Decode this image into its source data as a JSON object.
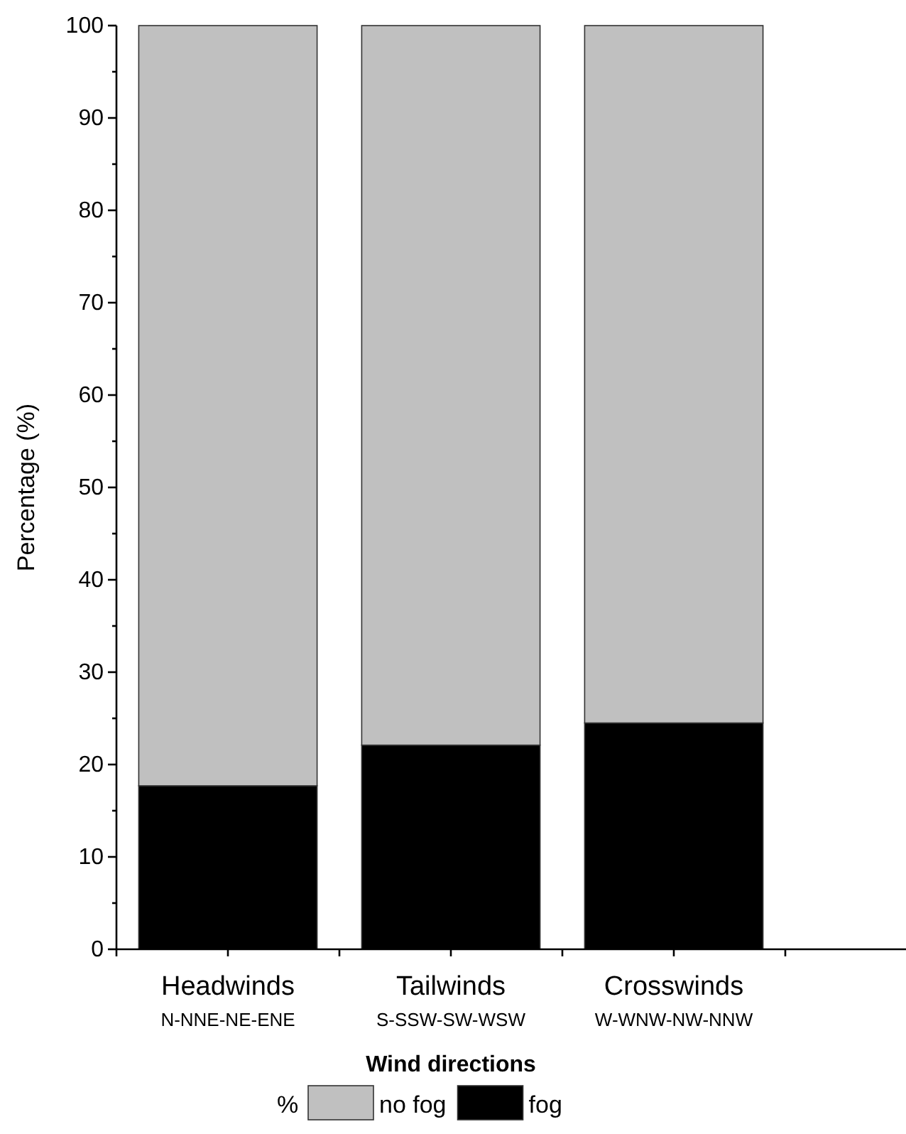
{
  "chart_data": {
    "type": "bar",
    "stacked": true,
    "xlabel": "Wind directions",
    "ylabel": "Percentage (%)",
    "legend_title": "%",
    "legend": "bottom",
    "categories": [
      "Headwinds\nN-NNE-NE-ENE",
      "Tailwinds\nS-SSW-SW-WSW",
      "Crosswinds\nW-WNW-NW-NNW"
    ],
    "series": [
      {
        "name": "fog",
        "color": "#000000",
        "values": [
          17.7,
          22.1,
          24.5
        ]
      },
      {
        "name": "no fog",
        "color": "#c0c0c0",
        "values": [
          82.3,
          77.9,
          75.5
        ]
      }
    ],
    "ylim": [
      0,
      100
    ],
    "yticks": [
      0,
      10,
      20,
      30,
      40,
      50,
      60,
      70,
      80,
      90,
      100
    ]
  }
}
